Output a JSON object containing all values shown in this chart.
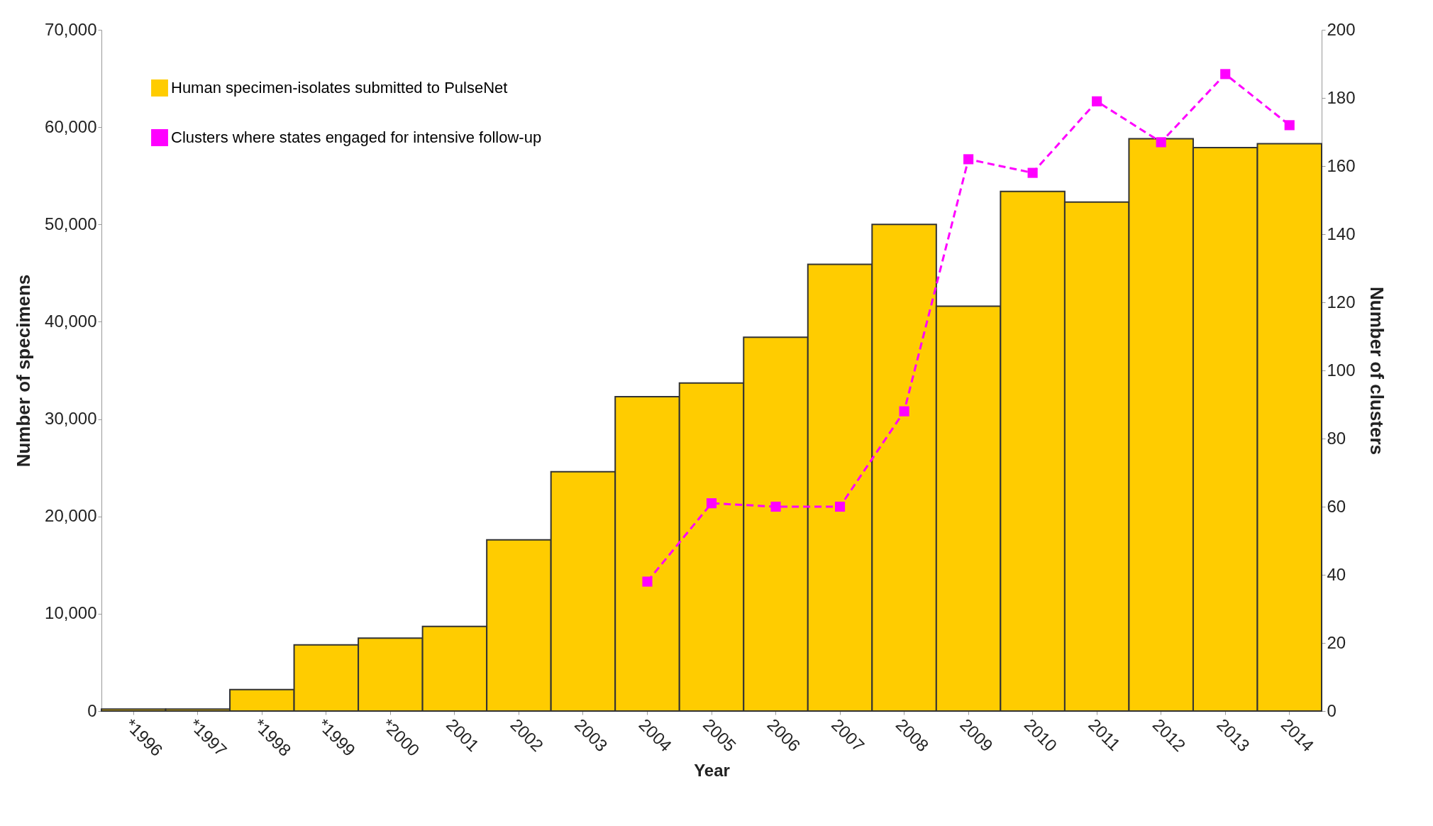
{
  "chart_data": {
    "type": "bar",
    "xlabel": "Year",
    "ylabel": "Number of specimens",
    "y2label": "Number of clusters",
    "categories": [
      "*1996",
      "*1997",
      "*1998",
      "*1999",
      "*2000",
      "2001",
      "2002",
      "2003",
      "2004",
      "2005",
      "2006",
      "2007",
      "2008",
      "2009",
      "2010",
      "2011",
      "2012",
      "2013",
      "2014"
    ],
    "series": [
      {
        "name": "Human specimen-isolates submitted to PulseNet",
        "color": "#ffcc00",
        "values": [
          200,
          200,
          2200,
          6800,
          7500,
          8700,
          17600,
          24600,
          32300,
          33700,
          38400,
          45900,
          50000,
          41600,
          53400,
          52300,
          58800,
          57900,
          58300
        ]
      },
      {
        "name": "Clusters where states engaged for intensive follow-up",
        "type": "line",
        "axis": "y2",
        "color": "#ff00ff",
        "marker": "square",
        "line_style": "dashed",
        "values": [
          null,
          null,
          null,
          null,
          null,
          null,
          null,
          null,
          38,
          61,
          60,
          60,
          88,
          162,
          158,
          179,
          167,
          187,
          172
        ]
      }
    ],
    "ylim": [
      0,
      70000
    ],
    "yticks": [
      0,
      {
        "value": 10000,
        "label": "10,000"
      },
      {
        "value": 20000,
        "label": "20,000"
      },
      {
        "value": 30000,
        "label": "30,000"
      },
      {
        "value": 40000,
        "label": "40,000"
      },
      {
        "value": 50000,
        "label": "50,000"
      },
      {
        "value": 60000,
        "label": "60,000"
      },
      {
        "value": 70000,
        "label": "70,000"
      }
    ],
    "y2lim": [
      0,
      200
    ],
    "y2ticks": [
      0,
      20,
      40,
      60,
      80,
      100,
      120,
      140,
      160,
      180,
      200
    ],
    "legend": "top left",
    "grid": false
  }
}
